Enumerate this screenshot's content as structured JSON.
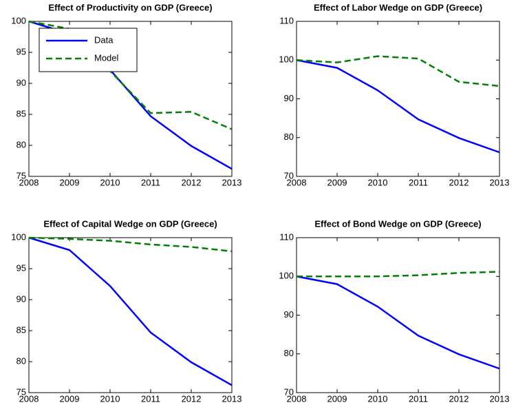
{
  "chart_data": [
    {
      "type": "line",
      "title": "Effect of Productivity on GDP (Greece)",
      "x": [
        2008,
        2009,
        2010,
        2011,
        2012,
        2013
      ],
      "series": [
        {
          "name": "Data",
          "color": "#0000ff",
          "linestyle": "solid",
          "values": [
            100,
            98,
            92.2,
            84.7,
            79.9,
            76.2
          ]
        },
        {
          "name": "Model",
          "color": "#008000",
          "linestyle": "dashed",
          "values": [
            100,
            98.8,
            92,
            85.2,
            85.4,
            82.6
          ]
        }
      ],
      "xlim": [
        2008,
        2013
      ],
      "xticks": [
        2008,
        2009,
        2010,
        2011,
        2012,
        2013
      ],
      "ylim": [
        75,
        100
      ],
      "yticks": [
        75,
        80,
        85,
        90,
        95,
        100
      ],
      "legend": "upper left"
    },
    {
      "type": "line",
      "title": "Effect of Labor Wedge on GDP (Greece)",
      "x": [
        2008,
        2009,
        2010,
        2011,
        2012,
        2013
      ],
      "series": [
        {
          "color": "#0000ff",
          "linestyle": "solid",
          "values": [
            100,
            98,
            92.2,
            84.7,
            79.9,
            76.2
          ]
        },
        {
          "color": "#008000",
          "linestyle": "dashed",
          "values": [
            100,
            99.4,
            101,
            100.4,
            94.4,
            93.3
          ]
        }
      ],
      "xlim": [
        2008,
        2013
      ],
      "xticks": [
        2008,
        2009,
        2010,
        2011,
        2012,
        2013
      ],
      "ylim": [
        70,
        110
      ],
      "yticks": [
        70,
        80,
        90,
        100,
        110
      ]
    },
    {
      "type": "line",
      "title": "Effect of Capital Wedge on GDP (Greece)",
      "x": [
        2008,
        2009,
        2010,
        2011,
        2012,
        2013
      ],
      "series": [
        {
          "color": "#0000ff",
          "linestyle": "solid",
          "values": [
            100,
            98,
            92.2,
            84.7,
            79.9,
            76.2
          ]
        },
        {
          "color": "#008000",
          "linestyle": "dashed",
          "values": [
            100,
            99.8,
            99.5,
            98.9,
            98.5,
            97.8
          ]
        }
      ],
      "xlim": [
        2008,
        2013
      ],
      "xticks": [
        2008,
        2009,
        2010,
        2011,
        2012,
        2013
      ],
      "ylim": [
        75,
        100
      ],
      "yticks": [
        75,
        80,
        85,
        90,
        95,
        100
      ]
    },
    {
      "type": "line",
      "title": "Effect of Bond Wedge on GDP (Greece)",
      "x": [
        2008,
        2009,
        2010,
        2011,
        2012,
        2013
      ],
      "series": [
        {
          "color": "#0000ff",
          "linestyle": "solid",
          "values": [
            100,
            98,
            92.2,
            84.7,
            79.9,
            76.2
          ]
        },
        {
          "color": "#008000",
          "linestyle": "dashed",
          "values": [
            100,
            100,
            100,
            100.3,
            100.9,
            101.2
          ]
        }
      ],
      "xlim": [
        2008,
        2013
      ],
      "xticks": [
        2008,
        2009,
        2010,
        2011,
        2012,
        2013
      ],
      "ylim": [
        70,
        110
      ],
      "yticks": [
        70,
        80,
        90,
        100,
        110
      ]
    }
  ]
}
